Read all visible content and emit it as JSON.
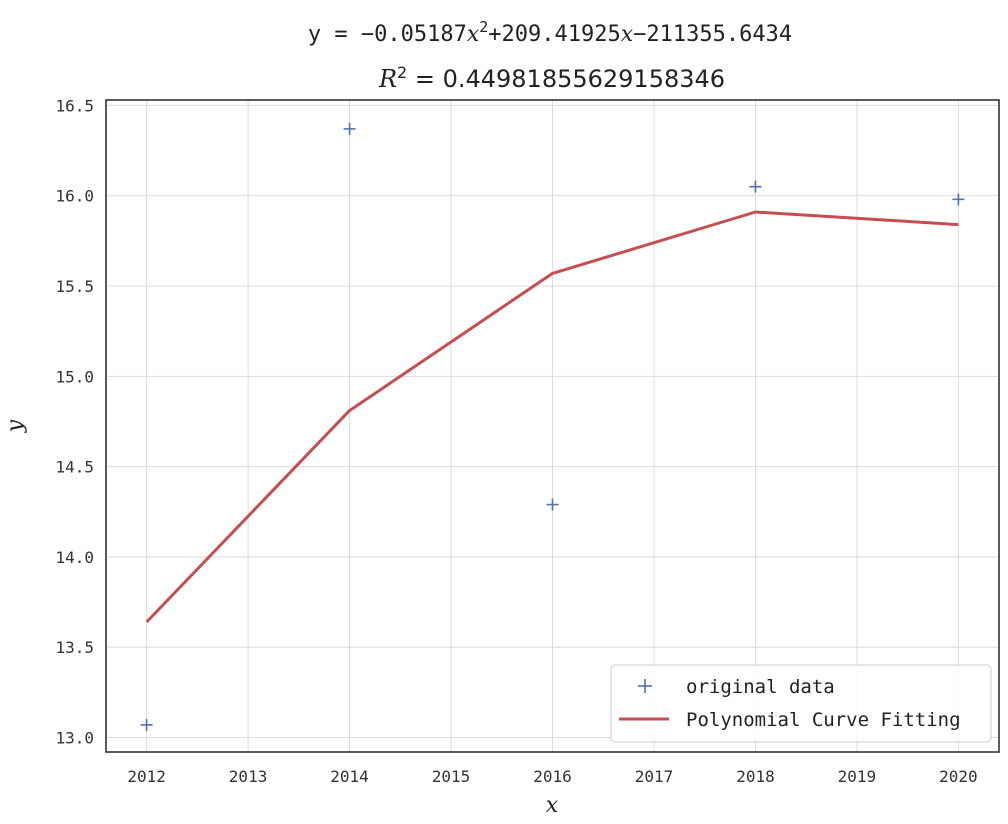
{
  "chart_data": {
    "type": "scatter",
    "title_equation": {
      "prefix": "y = −0.05187",
      "var1": "x",
      "exp1": "2",
      "mid": "+209.41925",
      "var2": "x",
      "suffix": "−211355.6434"
    },
    "title_r2": {
      "var": "R",
      "exp": "2",
      "value": " = 0.44981855629158346"
    },
    "xlabel": "x",
    "ylabel": "y",
    "xlim": [
      2011.6,
      2020.4
    ],
    "ylim": [
      12.92,
      16.53
    ],
    "xticks": [
      2012,
      2013,
      2014,
      2015,
      2016,
      2017,
      2018,
      2019,
      2020
    ],
    "xtick_labels": [
      "2012",
      "2013",
      "2014",
      "2015",
      "2016",
      "2017",
      "2018",
      "2019",
      "2020"
    ],
    "yticks": [
      13.0,
      13.5,
      14.0,
      14.5,
      15.0,
      15.5,
      16.0,
      16.5
    ],
    "ytick_labels": [
      "13.0",
      "13.5",
      "14.0",
      "14.5",
      "15.0",
      "15.5",
      "16.0",
      "16.5"
    ],
    "grid": true,
    "legend_position": "lower-right",
    "series": [
      {
        "name": "original data",
        "type": "scatter",
        "marker": "+",
        "color": "#4c72b0",
        "x": [
          2012,
          2014,
          2016,
          2018,
          2020
        ],
        "y": [
          13.07,
          16.37,
          14.29,
          16.05,
          15.98
        ]
      },
      {
        "name": "Polynomial Curve Fitting",
        "type": "line",
        "color": "#c44e52",
        "x": [
          2012,
          2014,
          2016,
          2018,
          2020
        ],
        "y": [
          13.64,
          14.81,
          15.57,
          15.91,
          15.84
        ]
      }
    ]
  }
}
